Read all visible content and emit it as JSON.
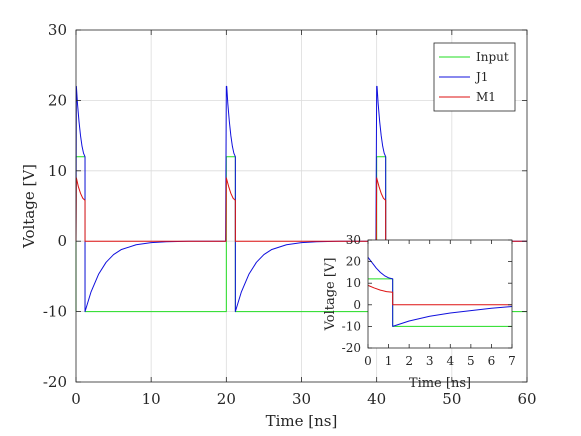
{
  "chart_data": [
    {
      "type": "line",
      "xlabel": "Time [ns]",
      "ylabel": "Voltage [V]",
      "xlim": [
        0,
        60
      ],
      "ylim": [
        -20,
        30
      ],
      "xticks": [
        0,
        10,
        20,
        30,
        40,
        50,
        60
      ],
      "yticks": [
        -20,
        -10,
        0,
        10,
        20,
        30
      ],
      "xtick_labels": [
        "0",
        "10",
        "20",
        "30",
        "40",
        "50",
        "60"
      ],
      "ytick_labels": [
        "-20",
        "-10",
        "0",
        "10",
        "20",
        "30"
      ],
      "grid": true,
      "legend_position": "top-right",
      "series": [
        {
          "name": "Input",
          "color": "#22dd22",
          "x": [
            0,
            0,
            1.2,
            1.2,
            20,
            20,
            21.2,
            21.2,
            40,
            40,
            41.2,
            41.2,
            60
          ],
          "y": [
            -10,
            12,
            12,
            -10,
            -10,
            12,
            12,
            -10,
            -10,
            12,
            12,
            -10,
            -10
          ]
        },
        {
          "name": "J1",
          "color": "#1010dd",
          "x": [
            0,
            0.05,
            0.2,
            0.4,
            0.6,
            0.8,
            1.0,
            1.2,
            1.2,
            2,
            3,
            4,
            5,
            6,
            8,
            10,
            12,
            15,
            19.9,
            20,
            20.05,
            20.2,
            20.4,
            20.6,
            20.8,
            21.0,
            21.2,
            21.2,
            22,
            23,
            24,
            25,
            26,
            28,
            30,
            32,
            35,
            39.9,
            40,
            40.05,
            40.2,
            40.4,
            40.6,
            40.8,
            41.0,
            41.2,
            41.2,
            42,
            43,
            44,
            45,
            46,
            48,
            50,
            52,
            55,
            60
          ],
          "y": [
            0,
            22,
            19.5,
            17,
            15,
            13.5,
            12.5,
            12,
            -10,
            -7.2,
            -4.7,
            -3.0,
            -1.9,
            -1.2,
            -0.5,
            -0.2,
            -0.08,
            0,
            0,
            22,
            22,
            19.5,
            17,
            15,
            13.5,
            12.5,
            12,
            -10,
            -7.2,
            -4.7,
            -3.0,
            -1.9,
            -1.2,
            -0.5,
            -0.2,
            -0.08,
            0,
            0,
            22,
            22,
            19.5,
            17,
            15,
            13.5,
            12.5,
            12,
            -10,
            -7.2,
            -4.7,
            -3.0,
            -1.9,
            -1.2,
            -0.5,
            -0.2,
            -0.08,
            0,
            0
          ]
        },
        {
          "name": "M1",
          "color": "#dd1111",
          "x": [
            0,
            0.05,
            0.3,
            0.6,
            0.9,
            1.2,
            1.2,
            19.95,
            20,
            20.3,
            20.6,
            20.9,
            21.2,
            21.2,
            39.95,
            40,
            40.3,
            40.6,
            40.9,
            41.2,
            41.2,
            60
          ],
          "y": [
            0,
            9,
            7.8,
            6.8,
            6.1,
            5.8,
            0,
            0,
            9,
            7.8,
            6.8,
            6.1,
            5.8,
            0,
            0,
            9,
            7.8,
            6.8,
            6.1,
            5.8,
            0,
            0
          ]
        }
      ]
    },
    {
      "type": "line",
      "xlabel": "Time [ns]",
      "ylabel": "Voltage [V]",
      "xlim": [
        0,
        7
      ],
      "ylim": [
        -20,
        30
      ],
      "xticks": [
        0,
        1,
        2,
        3,
        4,
        5,
        6,
        7
      ],
      "yticks": [
        -20,
        -10,
        0,
        10,
        20,
        30
      ],
      "xtick_labels": [
        "0",
        "1",
        "2",
        "3",
        "4",
        "5",
        "6",
        "7"
      ],
      "ytick_labels": [
        "-20",
        "-10",
        "0",
        "10",
        "20",
        "30"
      ],
      "grid": false,
      "series": [
        {
          "name": "Input",
          "color": "#22dd22",
          "x": [
            0,
            0,
            1.2,
            1.2,
            7
          ],
          "y": [
            12,
            12,
            12,
            -10,
            -10
          ]
        },
        {
          "name": "J1",
          "color": "#1010dd",
          "x": [
            0,
            0.2,
            0.4,
            0.6,
            0.8,
            1.0,
            1.2,
            1.2,
            2,
            3,
            4,
            5,
            6,
            7
          ],
          "y": [
            22,
            19.5,
            17,
            15,
            13.5,
            12.5,
            12,
            -10,
            -7.5,
            -5.3,
            -3.8,
            -2.7,
            -1.6,
            -0.8
          ]
        },
        {
          "name": "M1",
          "color": "#dd1111",
          "x": [
            0,
            0.3,
            0.6,
            0.9,
            1.2,
            1.2,
            7
          ],
          "y": [
            9,
            7.8,
            6.8,
            6.1,
            5.8,
            0,
            0
          ]
        }
      ]
    }
  ]
}
